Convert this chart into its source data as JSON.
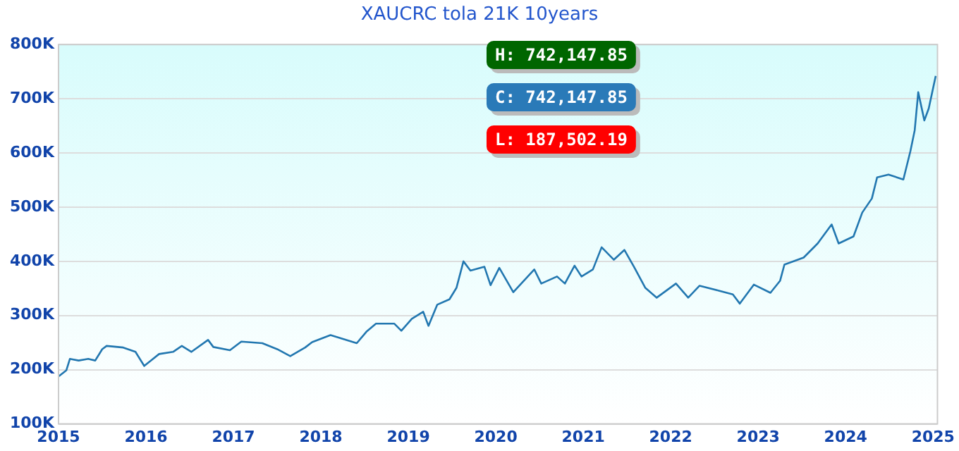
{
  "chart_data": {
    "type": "line",
    "title": "XAUCRC tola 21K 10years",
    "annotations": [
      "H: 742,147.85",
      "C: 742,147.85",
      "L: 187,502.19"
    ],
    "series": [
      {
        "color": "#2277b0",
        "x": [
          2015.0,
          2015.09,
          2015.13,
          2015.23,
          2015.34,
          2015.42,
          2015.5,
          2015.55,
          2015.74,
          2015.88,
          2015.98,
          2016.15,
          2016.31,
          2016.41,
          2016.52,
          2016.71,
          2016.77,
          2016.96,
          2017.09,
          2017.33,
          2017.5,
          2017.65,
          2017.82,
          2017.9,
          2018.11,
          2018.41,
          2018.52,
          2018.63,
          2018.84,
          2018.92,
          2019.04,
          2019.17,
          2019.23,
          2019.33,
          2019.47,
          2019.55,
          2019.63,
          2019.71,
          2019.87,
          2019.94,
          2020.04,
          2020.2,
          2020.44,
          2020.52,
          2020.7,
          2020.79,
          2020.9,
          2020.98,
          2021.11,
          2021.21,
          2021.35,
          2021.47,
          2021.58,
          2021.71,
          2021.84,
          2022.06,
          2022.2,
          2022.33,
          2022.55,
          2022.71,
          2022.79,
          2022.95,
          2023.14,
          2023.25,
          2023.3,
          2023.52,
          2023.68,
          2023.84,
          2023.92,
          2024.09,
          2024.19,
          2024.3,
          2024.36,
          2024.49,
          2024.66,
          2024.74,
          2024.79,
          2024.83,
          2024.9,
          2024.95,
          2024.99,
          2025.03
        ],
        "values": [
          187502,
          199000,
          220000,
          217000,
          220000,
          217000,
          238000,
          244000,
          241000,
          233000,
          207000,
          229000,
          233000,
          244000,
          233000,
          255000,
          242000,
          236000,
          252000,
          249000,
          238000,
          225000,
          241000,
          251000,
          264000,
          249000,
          270000,
          285000,
          285000,
          272000,
          294000,
          307000,
          281000,
          320000,
          330000,
          351000,
          400000,
          383000,
          390000,
          356000,
          388000,
          343000,
          385000,
          359000,
          372000,
          359000,
          392000,
          372000,
          385000,
          426000,
          403000,
          421000,
          390000,
          351000,
          333000,
          359000,
          333000,
          355000,
          346000,
          339000,
          322000,
          357000,
          342000,
          364000,
          394000,
          407000,
          433000,
          468000,
          433000,
          446000,
          490000,
          516000,
          555000,
          560000,
          551000,
          603000,
          642000,
          712000,
          660000,
          682000,
          712000,
          742148
        ]
      }
    ],
    "xlim": [
      2015,
      2025.05
    ],
    "xticks": [
      2015,
      2016,
      2017,
      2018,
      2019,
      2020,
      2021,
      2022,
      2023,
      2024,
      2025
    ],
    "ylim": [
      100000,
      800000
    ],
    "yticks": [
      {
        "value": 100000,
        "label": "100K"
      },
      {
        "value": 200000,
        "label": "200K"
      },
      {
        "value": 300000,
        "label": "300K"
      },
      {
        "value": 400000,
        "label": "400K"
      },
      {
        "value": 500000,
        "label": "500K"
      },
      {
        "value": 600000,
        "label": "600K"
      },
      {
        "value": 700000,
        "label": "700K"
      },
      {
        "value": 800000,
        "label": "800K"
      }
    ],
    "grid": "y",
    "legend": false,
    "marker": "none",
    "line_style": "solid"
  }
}
